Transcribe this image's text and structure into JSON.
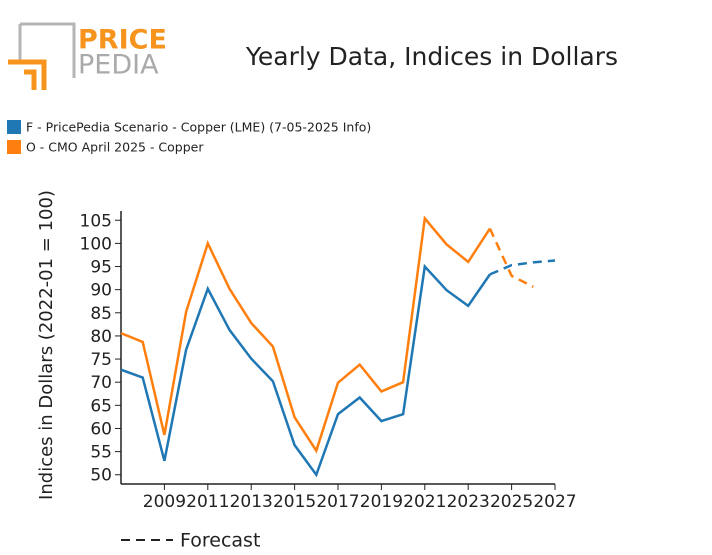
{
  "logo": {
    "top": "PRICE",
    "bottom": "PEDIA"
  },
  "chart_data": {
    "type": "line",
    "title": "Yearly Data, Indices in Dollars",
    "y_label": "Indices in Dollars (2022-01 = 100)",
    "x": [
      2007,
      2008,
      2009,
      2010,
      2011,
      2012,
      2013,
      2014,
      2015,
      2016,
      2017,
      2018,
      2019,
      2020,
      2021,
      2022,
      2023,
      2024,
      2025,
      2026,
      2027
    ],
    "series": [
      {
        "name": "F - PricePedia Scenario - Copper (LME) (7-05-2025 Info)",
        "color": "#1f77b4",
        "values": [
          72.7,
          71.0,
          53.0,
          77.0,
          90.2,
          81.3,
          75.1,
          70.2,
          56.4,
          50.0,
          63.1,
          66.7,
          61.6,
          63.1,
          95.0,
          89.9,
          86.5,
          93.3,
          95.3,
          95.9,
          96.3
        ]
      },
      {
        "name": "O - CMO April 2025 - Copper",
        "color": "#ff7f0e",
        "values": [
          80.6,
          78.7,
          58.6,
          85.2,
          100.0,
          90.2,
          82.8,
          77.7,
          62.4,
          55.2,
          69.9,
          73.8,
          68.0,
          70.0,
          105.4,
          99.8,
          96.0,
          103.2,
          93.0,
          90.6,
          null
        ]
      }
    ],
    "forecast_start": 2024,
    "forecast_label": "Forecast",
    "xlim": [
      2007,
      2027
    ],
    "xticks": [
      2009,
      2011,
      2013,
      2015,
      2017,
      2019,
      2021,
      2023,
      2025,
      2027
    ],
    "ylim": [
      48,
      107
    ],
    "yticks": [
      50,
      55,
      60,
      65,
      70,
      75,
      80,
      85,
      90,
      95,
      100,
      105
    ]
  }
}
